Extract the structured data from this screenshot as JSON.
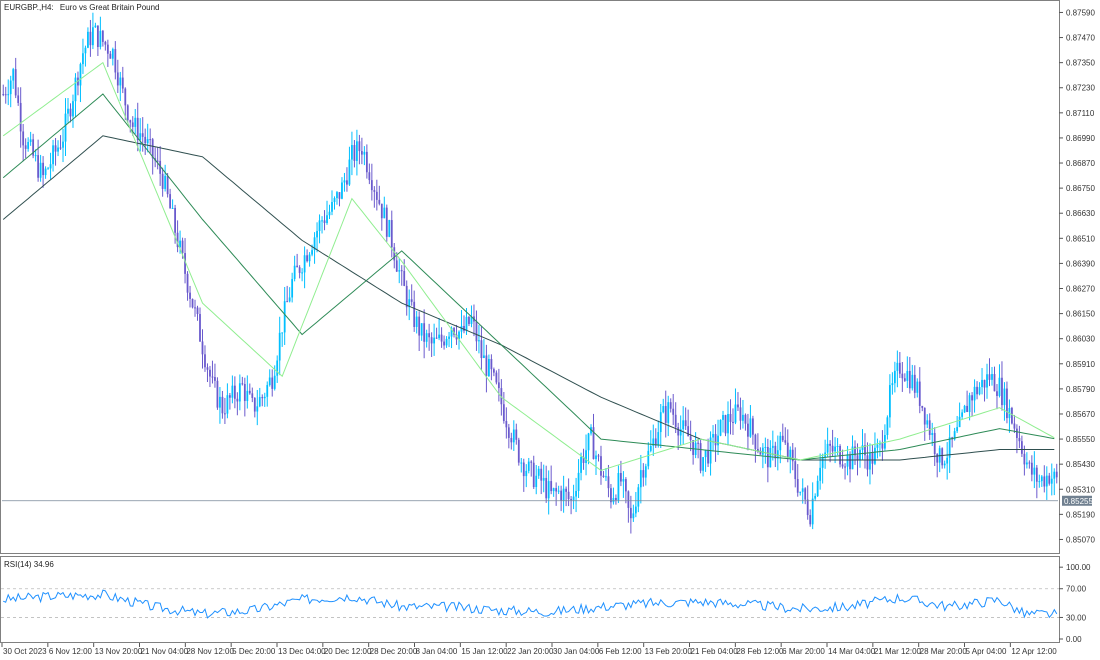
{
  "header": {
    "symbol": "EURGBP.,H4:",
    "description": "Euro vs Great Britain Pound"
  },
  "colors": {
    "bull": "#00bfff",
    "bear": "#6a5acd",
    "ma_fast": "#90ee90",
    "ma_mid": "#2e8b57",
    "ma_slow": "#2f4f4f",
    "rsi": "#1e90ff",
    "grid": "#c0c0c0",
    "frame": "#808080",
    "bid_line": "#778899",
    "price_tag_bg": "#708090"
  },
  "price_axis": {
    "ticks": [
      "0.87590",
      "0.87470",
      "0.87350",
      "0.87230",
      "0.87110",
      "0.86990",
      "0.86870",
      "0.86750",
      "0.86630",
      "0.86510",
      "0.86390",
      "0.86270",
      "0.86150",
      "0.86030",
      "0.85910",
      "0.85790",
      "0.85670",
      "0.85550",
      "0.85430",
      "0.85310",
      "0.85190",
      "0.85070"
    ],
    "current_price": "0.85255"
  },
  "rsi_panel": {
    "label": "RSI(14) 34.96",
    "levels": [
      "100.00",
      "70.00",
      "30.00",
      "0.00"
    ]
  },
  "time_axis": {
    "labels": [
      "30 Oct 2023",
      "6 Nov 12:00",
      "13 Nov 20:00",
      "21 Nov 04:00",
      "28 Nov 12:00",
      "5 Dec 20:00",
      "13 Dec 04:00",
      "20 Dec 12:00",
      "28 Dec 20:00",
      "8 Jan 04:00",
      "15 Jan 12:00",
      "22 Jan 20:00",
      "30 Jan 04:00",
      "6 Feb 12:00",
      "13 Feb 20:00",
      "21 Feb 04:00",
      "28 Feb 12:00",
      "6 Mar 20:00",
      "14 Mar 04:00",
      "21 Mar 12:00",
      "28 Mar 20:00",
      "5 Apr 04:00",
      "12 Apr 12:00"
    ]
  },
  "chart_data": {
    "type": "candlestick",
    "title": "EURGBP.,H4: Euro vs Great Britain Pound",
    "ylim": [
      0.8501,
      0.8764
    ],
    "price_path": [
      [
        0,
        0.872
      ],
      [
        4,
        0.873
      ],
      [
        8,
        0.87
      ],
      [
        12,
        0.869
      ],
      [
        16,
        0.868
      ],
      [
        20,
        0.869
      ],
      [
        24,
        0.87
      ],
      [
        28,
        0.872
      ],
      [
        32,
        0.874
      ],
      [
        36,
        0.875
      ],
      [
        40,
        0.8745
      ],
      [
        44,
        0.874
      ],
      [
        48,
        0.872
      ],
      [
        52,
        0.8705
      ],
      [
        56,
        0.87
      ],
      [
        60,
        0.869
      ],
      [
        64,
        0.868
      ],
      [
        68,
        0.866
      ],
      [
        72,
        0.864
      ],
      [
        76,
        0.862
      ],
      [
        80,
        0.86
      ],
      [
        84,
        0.858
      ],
      [
        88,
        0.857
      ],
      [
        92,
        0.8575
      ],
      [
        96,
        0.858
      ],
      [
        100,
        0.857
      ],
      [
        104,
        0.8575
      ],
      [
        108,
        0.8585
      ],
      [
        112,
        0.861
      ],
      [
        116,
        0.863
      ],
      [
        120,
        0.864
      ],
      [
        124,
        0.865
      ],
      [
        128,
        0.866
      ],
      [
        132,
        0.8665
      ],
      [
        136,
        0.8675
      ],
      [
        140,
        0.869
      ],
      [
        144,
        0.8695
      ],
      [
        148,
        0.868
      ],
      [
        152,
        0.8665
      ],
      [
        156,
        0.865
      ],
      [
        160,
        0.863
      ],
      [
        164,
        0.8615
      ],
      [
        168,
        0.8605
      ],
      [
        172,
        0.86
      ],
      [
        176,
        0.8602
      ],
      [
        180,
        0.861
      ],
      [
        184,
        0.8605
      ],
      [
        188,
        0.8612
      ],
      [
        192,
        0.8595
      ],
      [
        196,
        0.8585
      ],
      [
        200,
        0.8572
      ],
      [
        204,
        0.8558
      ],
      [
        208,
        0.8545
      ],
      [
        212,
        0.8538
      ],
      [
        216,
        0.8535
      ],
      [
        220,
        0.8528
      ],
      [
        224,
        0.853
      ],
      [
        228,
        0.8525
      ],
      [
        232,
        0.8545
      ],
      [
        236,
        0.8555
      ],
      [
        240,
        0.854
      ],
      [
        244,
        0.8528
      ],
      [
        248,
        0.8535
      ],
      [
        252,
        0.8515
      ],
      [
        256,
        0.854
      ],
      [
        260,
        0.855
      ],
      [
        264,
        0.8565
      ],
      [
        268,
        0.857
      ],
      [
        272,
        0.856
      ],
      [
        276,
        0.8555
      ],
      [
        280,
        0.8545
      ],
      [
        284,
        0.855
      ],
      [
        288,
        0.856
      ],
      [
        292,
        0.8565
      ],
      [
        296,
        0.8568
      ],
      [
        300,
        0.856
      ],
      [
        304,
        0.855
      ],
      [
        308,
        0.8545
      ],
      [
        312,
        0.8555
      ],
      [
        316,
        0.8545
      ],
      [
        320,
        0.853
      ],
      [
        324,
        0.852
      ],
      [
        328,
        0.8545
      ],
      [
        332,
        0.855
      ],
      [
        336,
        0.8548
      ],
      [
        340,
        0.8545
      ],
      [
        344,
        0.855
      ],
      [
        348,
        0.8545
      ],
      [
        352,
        0.855
      ],
      [
        356,
        0.8575
      ],
      [
        360,
        0.859
      ],
      [
        364,
        0.8585
      ],
      [
        368,
        0.8575
      ],
      [
        372,
        0.856
      ],
      [
        376,
        0.8545
      ],
      [
        380,
        0.855
      ],
      [
        384,
        0.856
      ],
      [
        388,
        0.8575
      ],
      [
        392,
        0.858
      ],
      [
        396,
        0.8585
      ],
      [
        400,
        0.858
      ],
      [
        404,
        0.8568
      ],
      [
        408,
        0.8555
      ],
      [
        412,
        0.854
      ],
      [
        416,
        0.8535
      ],
      [
        420,
        0.8538
      ],
      [
        423,
        0.8535
      ]
    ],
    "ma_fast_path": [
      [
        0,
        0.87
      ],
      [
        40,
        0.8735
      ],
      [
        80,
        0.862
      ],
      [
        112,
        0.8585
      ],
      [
        140,
        0.867
      ],
      [
        160,
        0.864
      ],
      [
        200,
        0.8575
      ],
      [
        240,
        0.854
      ],
      [
        280,
        0.8555
      ],
      [
        320,
        0.8545
      ],
      [
        360,
        0.8555
      ],
      [
        400,
        0.857
      ],
      [
        423,
        0.8555
      ]
    ],
    "ma_mid_path": [
      [
        0,
        0.868
      ],
      [
        40,
        0.872
      ],
      [
        80,
        0.866
      ],
      [
        120,
        0.8605
      ],
      [
        160,
        0.8645
      ],
      [
        200,
        0.86
      ],
      [
        240,
        0.8555
      ],
      [
        280,
        0.855
      ],
      [
        320,
        0.8545
      ],
      [
        360,
        0.855
      ],
      [
        400,
        0.856
      ],
      [
        423,
        0.8555
      ]
    ],
    "ma_slow_path": [
      [
        0,
        0.866
      ],
      [
        40,
        0.87
      ],
      [
        80,
        0.869
      ],
      [
        120,
        0.865
      ],
      [
        160,
        0.862
      ],
      [
        200,
        0.86
      ],
      [
        240,
        0.8575
      ],
      [
        280,
        0.8555
      ],
      [
        320,
        0.8545
      ],
      [
        360,
        0.8545
      ],
      [
        400,
        0.855
      ],
      [
        423,
        0.855
      ]
    ],
    "rsi_path": [
      [
        0,
        55
      ],
      [
        20,
        60
      ],
      [
        40,
        62
      ],
      [
        60,
        45
      ],
      [
        80,
        35
      ],
      [
        100,
        40
      ],
      [
        120,
        55
      ],
      [
        140,
        60
      ],
      [
        160,
        45
      ],
      [
        180,
        45
      ],
      [
        200,
        40
      ],
      [
        220,
        38
      ],
      [
        240,
        45
      ],
      [
        260,
        50
      ],
      [
        280,
        52
      ],
      [
        300,
        48
      ],
      [
        320,
        42
      ],
      [
        340,
        45
      ],
      [
        360,
        58
      ],
      [
        380,
        45
      ],
      [
        400,
        55
      ],
      [
        410,
        35
      ],
      [
        423,
        34.96
      ]
    ]
  }
}
